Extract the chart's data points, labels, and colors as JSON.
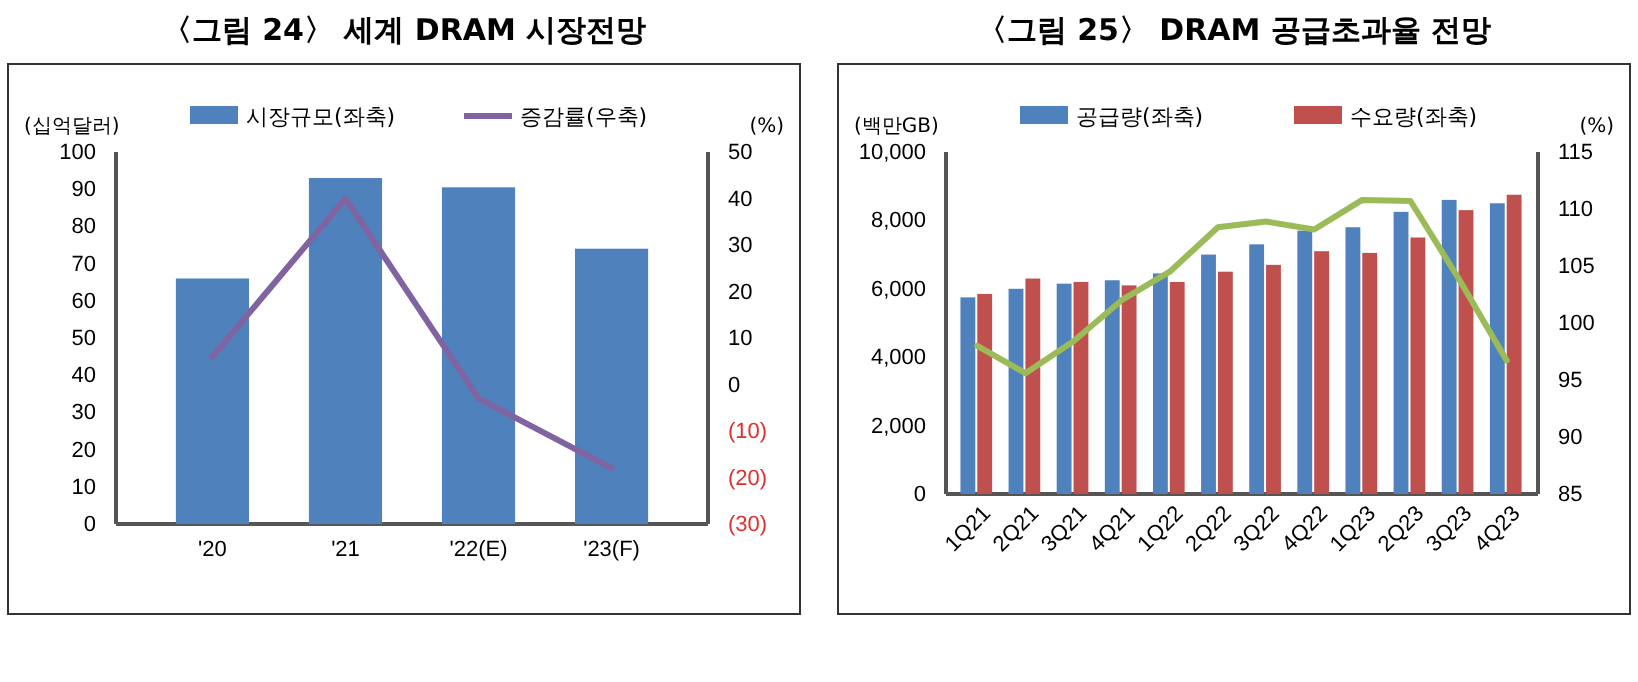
{
  "chart_data": [
    {
      "type": "bar",
      "title": "〈그림 24〉 세계 DRAM 시장전망",
      "ylabel": "(십억달러)",
      "y2label": "(%)",
      "categories": [
        "'20",
        "'21",
        "'22(E)",
        "'23(F)"
      ],
      "series": [
        {
          "name": "시장규모(좌축)",
          "color": "#4f81bd",
          "values": [
            66,
            93,
            90.5,
            74
          ]
        },
        {
          "name": "증감률(우축)",
          "type": "line",
          "axis": "y2",
          "color": "#8064a2",
          "values": [
            6,
            40,
            -3,
            -18
          ]
        }
      ],
      "ylim": [
        0,
        100
      ],
      "yticks": [
        0,
        10,
        20,
        30,
        40,
        50,
        60,
        70,
        80,
        90,
        100
      ],
      "y2lim": [
        -30,
        50
      ],
      "y2ticks": [
        {
          "value": -30,
          "label": "(30)"
        },
        {
          "value": -20,
          "label": "(20)"
        },
        {
          "value": -10,
          "label": "(10)"
        },
        0,
        10,
        20,
        30,
        40,
        50
      ],
      "legend": "top",
      "grid": false
    },
    {
      "type": "bar",
      "title": "〈그림 25〉 DRAM 공급초과율 전망",
      "ylabel": "(백만GB)",
      "y2label": "(%)",
      "categories": [
        "1Q21",
        "2Q21",
        "3Q21",
        "4Q21",
        "1Q22",
        "2Q22",
        "3Q22",
        "4Q22",
        "1Q23",
        "2Q23",
        "3Q23",
        "4Q23"
      ],
      "series": [
        {
          "name": "공급량(좌축)",
          "color": "#4f81bd",
          "values": [
            5750,
            6000,
            6150,
            6250,
            6450,
            7000,
            7300,
            7700,
            7800,
            8250,
            8600,
            8500
          ]
        },
        {
          "name": "수요량(좌축)",
          "color": "#c0504d",
          "values": [
            5850,
            6300,
            6200,
            6100,
            6200,
            6500,
            6700,
            7100,
            7050,
            7500,
            8300,
            8750
          ]
        },
        {
          "type": "line",
          "axis": "y2",
          "color": "#9bbb59",
          "values": [
            98,
            95.6,
            98.4,
            102,
            104.5,
            108.4,
            108.9,
            108.2,
            110.8,
            110.7,
            103.9,
            96.7
          ]
        }
      ],
      "ylim": [
        0,
        10000
      ],
      "yticks": [
        {
          "value": 0,
          "label": "0"
        },
        {
          "value": 2000,
          "label": "2,000"
        },
        {
          "value": 4000,
          "label": "4,000"
        },
        {
          "value": 6000,
          "label": "6,000"
        },
        {
          "value": 8000,
          "label": "8,000"
        },
        {
          "value": 10000,
          "label": "10,000"
        }
      ],
      "y2lim": [
        85,
        115
      ],
      "y2ticks": [
        85,
        90,
        95,
        100,
        105,
        110,
        115
      ],
      "legend": "top",
      "grid": false
    }
  ]
}
